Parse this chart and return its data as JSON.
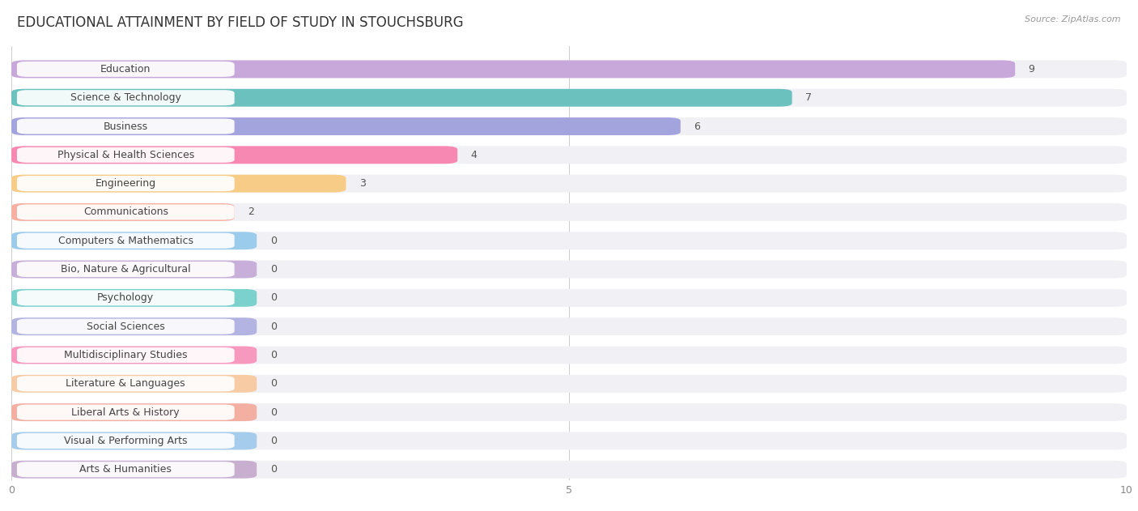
{
  "title": "EDUCATIONAL ATTAINMENT BY FIELD OF STUDY IN STOUCHSBURG",
  "source": "Source: ZipAtlas.com",
  "categories": [
    "Education",
    "Science & Technology",
    "Business",
    "Physical & Health Sciences",
    "Engineering",
    "Communications",
    "Computers & Mathematics",
    "Bio, Nature & Agricultural",
    "Psychology",
    "Social Sciences",
    "Multidisciplinary Studies",
    "Literature & Languages",
    "Liberal Arts & History",
    "Visual & Performing Arts",
    "Arts & Humanities"
  ],
  "values": [
    9,
    7,
    6,
    4,
    3,
    2,
    0,
    0,
    0,
    0,
    0,
    0,
    0,
    0,
    0
  ],
  "bar_colors": [
    "#c49fd8",
    "#5bbcb8",
    "#9b9bdc",
    "#f87daa",
    "#f8c87a",
    "#f8a898",
    "#92c8ec",
    "#c4a8d8",
    "#6ecec8",
    "#aeaee0",
    "#f890b8",
    "#f8c89c",
    "#f4a898",
    "#9ec8ec",
    "#c4a8cc"
  ],
  "xlim": [
    0,
    10
  ],
  "xticks": [
    0,
    5,
    10
  ],
  "background_color": "#ffffff",
  "row_bg_color": "#f0f0f5",
  "title_fontsize": 12,
  "label_fontsize": 9,
  "value_fontsize": 9,
  "zero_bar_width": 2.2
}
